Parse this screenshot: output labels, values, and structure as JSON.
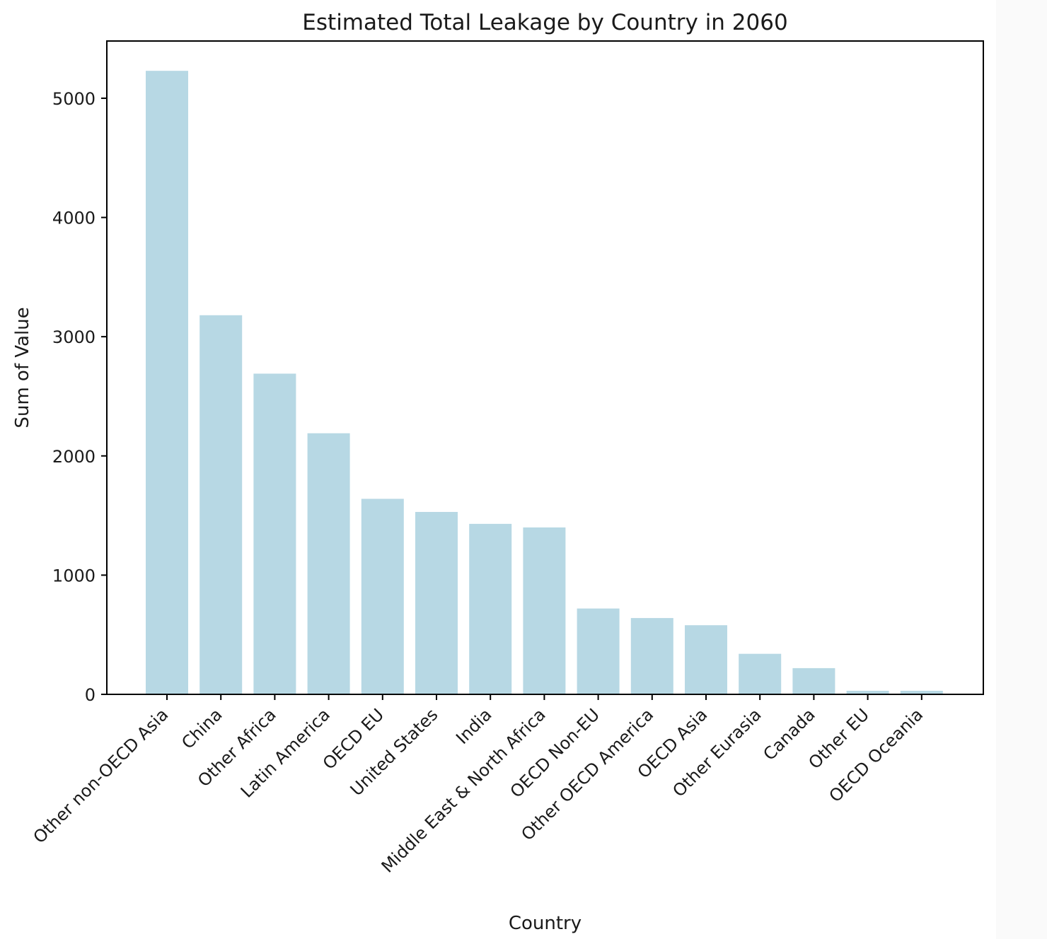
{
  "chart_data": {
    "type": "bar",
    "title": "Estimated Total Leakage by Country in 2060",
    "xlabel": "Country",
    "ylabel": "Sum of Value",
    "categories": [
      "Other non-OECD Asia",
      "China",
      "Other Africa",
      "Latin America",
      "OECD EU",
      "United States",
      "India",
      "Middle East & North Africa",
      "OECD Non-EU",
      "Other OECD America",
      "OECD Asia",
      "Other Eurasia",
      "Canada",
      "Other EU",
      "OECD Oceania"
    ],
    "values": [
      5230,
      3180,
      2690,
      2190,
      1640,
      1530,
      1430,
      1400,
      720,
      640,
      580,
      340,
      220,
      30,
      30
    ],
    "ylim": [
      0,
      5480
    ],
    "yticks": [
      0,
      1000,
      2000,
      3000,
      4000,
      5000
    ],
    "bar_color": "#b7d8e4",
    "grid": false,
    "legend": "none"
  }
}
